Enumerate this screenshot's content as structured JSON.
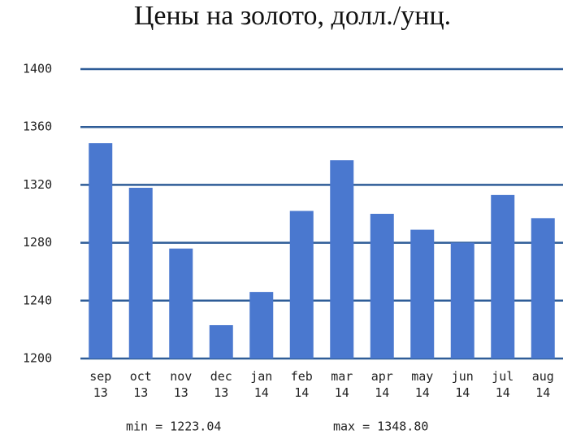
{
  "chart_data": {
    "type": "bar",
    "title": "Цены на золото, долл./унц.",
    "categories": [
      "sep 13",
      "oct 13",
      "nov 13",
      "dec 13",
      "jan 14",
      "feb 14",
      "mar 14",
      "apr 14",
      "may 14",
      "jun 14",
      "jul 14",
      "aug 14"
    ],
    "values": [
      1348.8,
      1318,
      1276,
      1223.04,
      1246,
      1302,
      1337,
      1300,
      1289,
      1280,
      1313,
      1297
    ],
    "color": "#4a78cf",
    "ylim": [
      1200,
      1400
    ],
    "yticks": [
      1200,
      1240,
      1280,
      1320,
      1360,
      1400
    ],
    "grid": true,
    "annotations": [
      "min = 1223.04",
      "max = 1348.80"
    ]
  }
}
